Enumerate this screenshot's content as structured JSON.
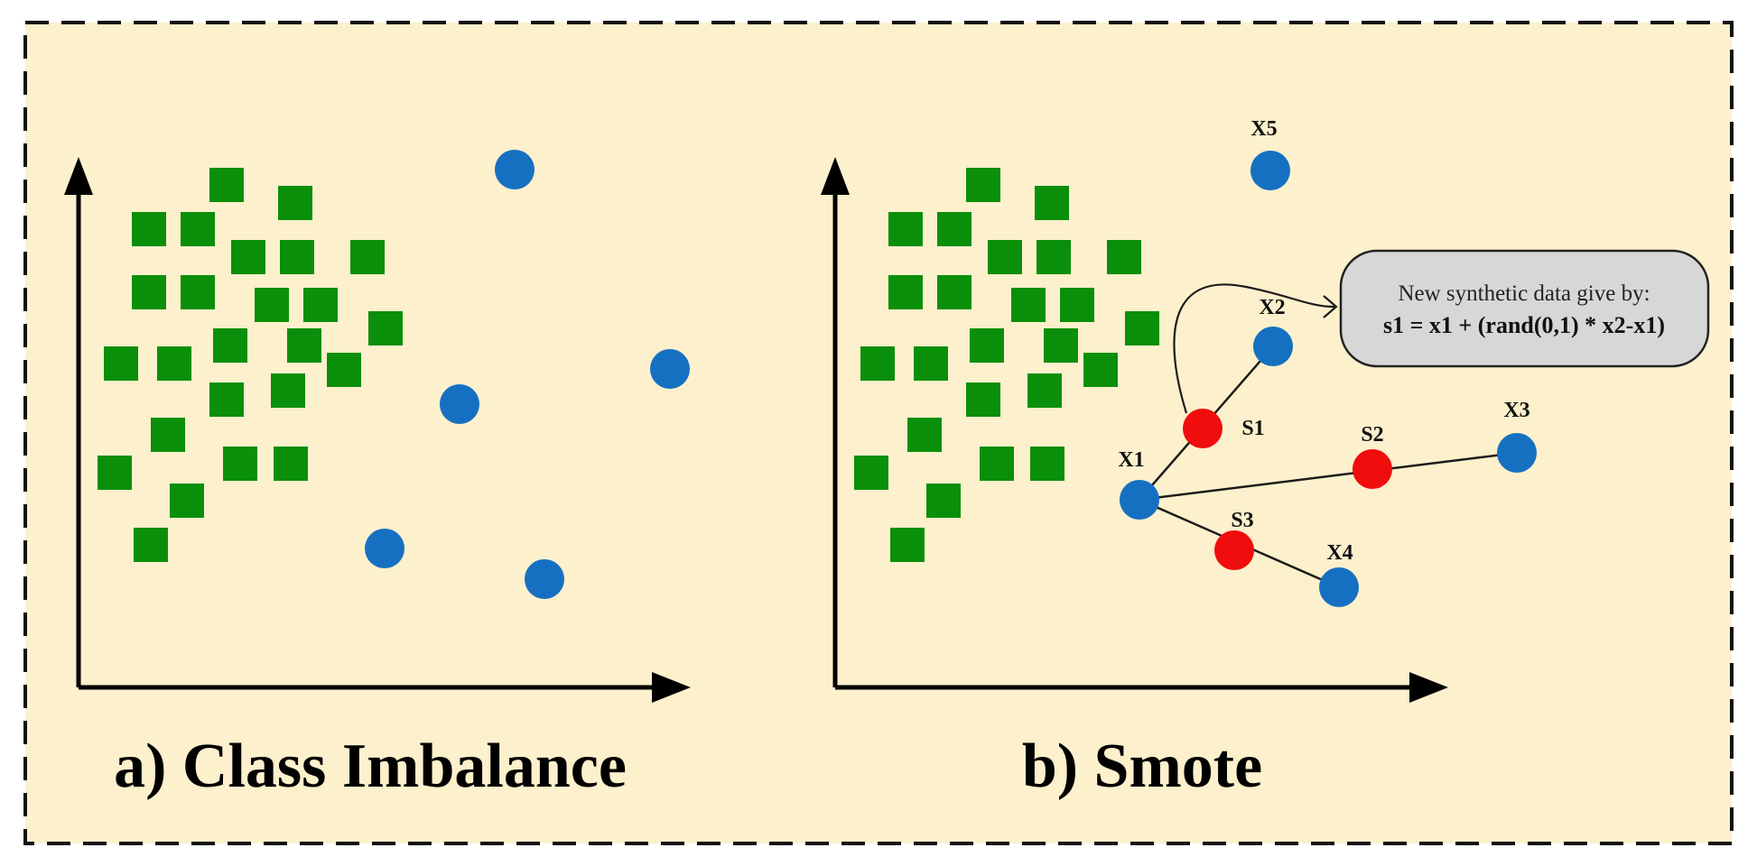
{
  "panels": {
    "a": {
      "title": "a) Class Imbalance"
    },
    "b": {
      "title": "b) Smote"
    }
  },
  "points": {
    "x1": "X1",
    "x2": "X2",
    "x3": "X3",
    "x4": "X4",
    "x5": "X5",
    "s1": "S1",
    "s2": "S2",
    "s3": "S3"
  },
  "callout": {
    "line1": "New synthetic data give by:",
    "line2": "s1 = x1 + (rand(0,1) * x2-x1)"
  },
  "colors": {
    "background": "#fdf0cc",
    "majority_class": "#0a8f0a",
    "minority_class": "#1670c2",
    "synthetic": "#f00d0d"
  }
}
